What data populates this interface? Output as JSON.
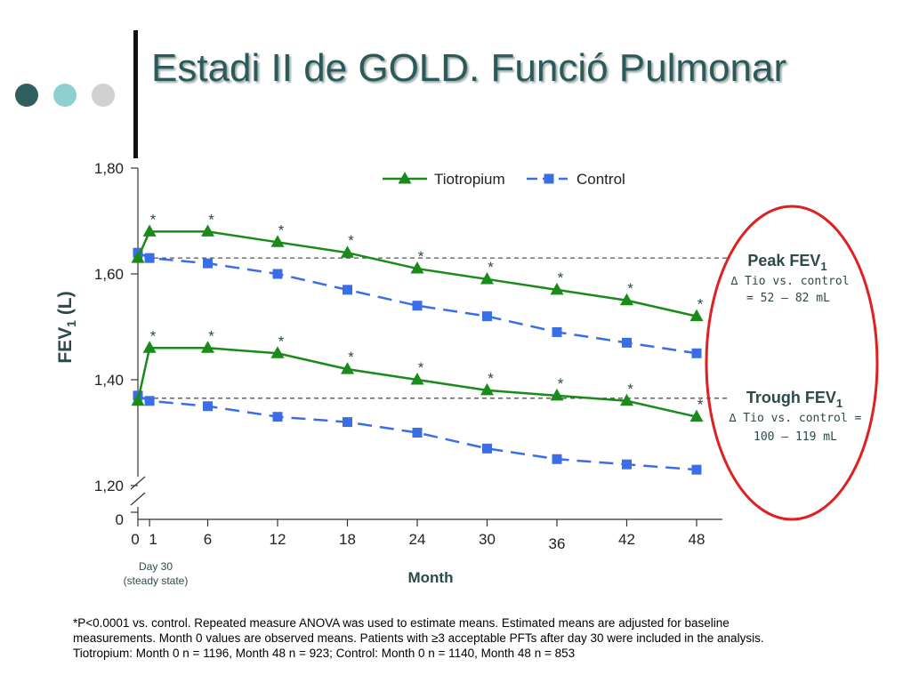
{
  "slide": {
    "title": "Estadi II de GOLD. Funció Pulmonar",
    "dot_colors": [
      "#2f5f5f",
      "#8ecfd0",
      "#d0d0d0"
    ]
  },
  "chart_data": {
    "type": "line",
    "ylabel_main": "FEV",
    "ylabel_sub": "1",
    "ylabel_tail": " (L)",
    "xlabel": "Month",
    "x_note_line1": "Day 30",
    "x_note_line2": "(steady state)",
    "y_ticks": [
      {
        "value": 1.8,
        "label": "1,80"
      },
      {
        "value": 1.6,
        "label": "1,60"
      },
      {
        "value": 1.4,
        "label": "1,40"
      },
      {
        "value": 1.2,
        "label": "1,20"
      }
    ],
    "y_zero_label": "0",
    "ylim": [
      1.2,
      1.8
    ],
    "x_ticks": [
      "0",
      "1",
      "6",
      "12",
      "18",
      "24",
      "30",
      "36",
      "42",
      "48"
    ],
    "x_values": [
      0,
      1,
      6,
      12,
      18,
      24,
      30,
      36,
      42,
      48
    ],
    "series": [
      {
        "name": "Tiotropium",
        "key": "tio_peak",
        "color": "#1a8a1a",
        "marker": "triangle",
        "dash": false,
        "x": [
          0,
          1,
          6,
          12,
          18,
          24,
          30,
          36,
          42,
          48
        ],
        "values": [
          1.63,
          1.68,
          1.68,
          1.66,
          1.64,
          1.61,
          1.59,
          1.57,
          1.55,
          1.52
        ],
        "stars": [
          false,
          true,
          true,
          true,
          true,
          true,
          true,
          true,
          true,
          true
        ]
      },
      {
        "name": "Control",
        "key": "ctrl_peak",
        "color": "#3a6ee8",
        "marker": "square",
        "dash": true,
        "x": [
          0,
          1,
          6,
          12,
          18,
          24,
          30,
          36,
          42,
          48
        ],
        "values": [
          1.64,
          1.63,
          1.62,
          1.6,
          1.57,
          1.54,
          1.52,
          1.49,
          1.47,
          1.45
        ],
        "stars": [
          false,
          false,
          false,
          false,
          false,
          false,
          false,
          false,
          false,
          false
        ]
      },
      {
        "name": "Tiotropium",
        "key": "tio_trough",
        "color": "#1a8a1a",
        "marker": "triangle",
        "dash": false,
        "x": [
          0,
          1,
          6,
          12,
          18,
          24,
          30,
          36,
          42,
          48
        ],
        "values": [
          1.36,
          1.46,
          1.46,
          1.45,
          1.42,
          1.4,
          1.38,
          1.37,
          1.36,
          1.33
        ],
        "stars": [
          false,
          true,
          true,
          true,
          true,
          true,
          true,
          true,
          true,
          true
        ]
      },
      {
        "name": "Control",
        "key": "ctrl_trough",
        "color": "#3a6ee8",
        "marker": "square",
        "dash": true,
        "x": [
          0,
          1,
          6,
          12,
          18,
          24,
          30,
          36,
          42,
          48
        ],
        "values": [
          1.37,
          1.36,
          1.35,
          1.33,
          1.32,
          1.3,
          1.27,
          1.25,
          1.24,
          1.23
        ],
        "stars": [
          false,
          false,
          false,
          false,
          false,
          false,
          false,
          false,
          false,
          false
        ]
      }
    ],
    "star_glyph": "*",
    "reference_lines": [
      1.63,
      1.365
    ],
    "legend": {
      "placement": "top-center",
      "items": [
        "Tiotropium",
        "Control"
      ]
    },
    "annotations": {
      "peak_title": "Peak FEV",
      "peak_sub": "1",
      "peak_line1": "∆ Tio vs. control",
      "peak_line2": "= 52 – 82 mL",
      "trough_title": "Trough FEV",
      "trough_sub": "1",
      "trough_line1": "∆ Tio vs. control =",
      "trough_line2": "100 – 119 mL",
      "ellipse_color": "#e02020"
    }
  },
  "footnote": {
    "line1": "*P<0.0001 vs. control. Repeated measure ANOVA was used to estimate means. Estimated means are adjusted for baseline",
    "line2": "measurements. Month 0 values are observed means. Patients with ≥3 acceptable PFTs after day 30 were included in the analysis.",
    "line3": "Tiotropium: Month 0 n = 1196, Month 48 n = 923; Control: Month 0 n = 1140, Month 48 n = 853"
  }
}
